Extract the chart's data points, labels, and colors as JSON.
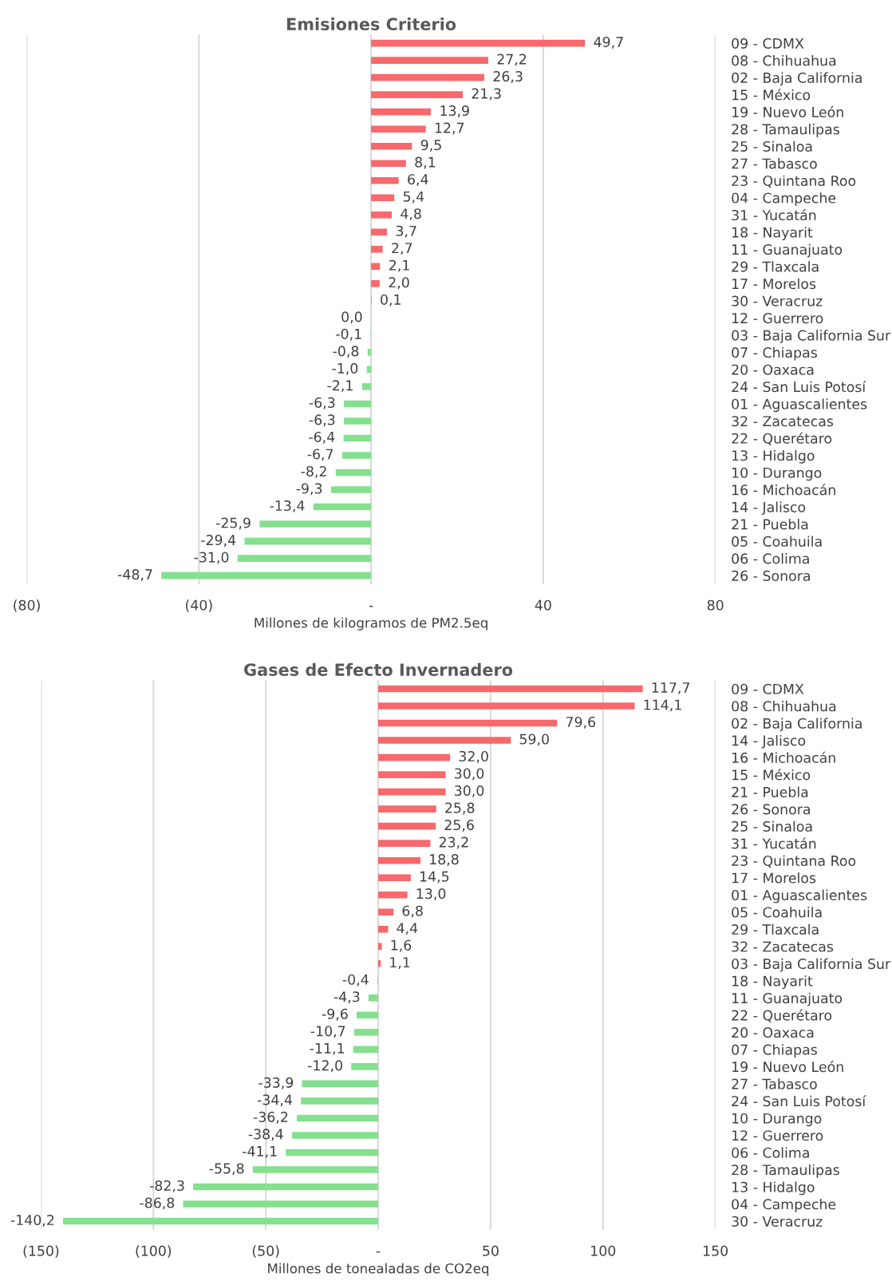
{
  "chart_data": [
    {
      "type": "bar",
      "orientation": "horizontal",
      "title": "Emisiones Criterio",
      "xlabel": "Millones de kilogramos de PM2.5eq",
      "categories": [
        "09 - CDMX",
        "08 - Chihuahua",
        "02 - Baja California",
        "15 - México",
        "19 - Nuevo León",
        "28 - Tamaulipas",
        "25 - Sinaloa",
        "27 - Tabasco",
        "23 - Quintana Roo",
        "04 - Campeche",
        "31 - Yucatán",
        "18 - Nayarit",
        "11 - Guanajuato",
        "29 - Tlaxcala",
        "17 - Morelos",
        "30 - Veracruz",
        "12 - Guerrero",
        "03 - Baja California Sur",
        "07 - Chiapas",
        "20 - Oaxaca",
        "24 - San Luis Potosí",
        "01 - Aguascalientes",
        "32 - Zacatecas",
        "22 - Querétaro",
        "13 - Hidalgo",
        "10 - Durango",
        "16 - Michoacán",
        "14 - Jalisco",
        "21 - Puebla",
        "05 - Coahuila",
        "06 - Colima",
        "26 - Sonora"
      ],
      "values": [
        49.7,
        27.2,
        26.3,
        21.3,
        13.9,
        12.7,
        9.5,
        8.1,
        6.4,
        5.4,
        4.8,
        3.7,
        2.7,
        2.1,
        2.0,
        0.1,
        0.0,
        -0.1,
        -0.8,
        -1.0,
        -2.1,
        -6.3,
        -6.3,
        -6.4,
        -6.7,
        -8.2,
        -9.3,
        -13.4,
        -25.9,
        -29.4,
        -31.0,
        -48.7
      ],
      "value_labels": [
        "49,7",
        "27,2",
        "26,3",
        "21,3",
        "13,9",
        "12,7",
        "9,5",
        "8,1",
        "6,4",
        "5,4",
        "4,8",
        "3,7",
        "2,7",
        "2,1",
        "2,0",
        "0,1",
        "0,0",
        "-0,1",
        "-0,8",
        "-1,0",
        "-2,1",
        "-6,3",
        "-6,3",
        "-6,4",
        "-6,7",
        "-8,2",
        "-9,3",
        "-13,4",
        "-25,9",
        "-29,4",
        "-31,0",
        "-48,7"
      ],
      "colors": [
        "#f8686c",
        "#f8686c",
        "#f8686c",
        "#f8686c",
        "#f8686c",
        "#f8686c",
        "#f8686c",
        "#f8686c",
        "#f8686c",
        "#f8686c",
        "#f8686c",
        "#f8686c",
        "#f8686c",
        "#f8686c",
        "#f8686c",
        "#f8686c",
        "#84e08e",
        "#84e08e",
        "#84e08e",
        "#84e08e",
        "#84e08e",
        "#84e08e",
        "#84e08e",
        "#84e08e",
        "#84e08e",
        "#84e08e",
        "#84e08e",
        "#84e08e",
        "#84e08e",
        "#84e08e",
        "#84e08e",
        "#84e08e"
      ],
      "xlim": [
        -80,
        80
      ],
      "xticks": [
        {
          "value": -80,
          "label": "(80)"
        },
        {
          "value": -40,
          "label": "(40)"
        },
        {
          "value": 0,
          "label": "-"
        },
        40,
        80
      ],
      "grid": "x"
    },
    {
      "type": "bar",
      "orientation": "horizontal",
      "title": "Gases de Efecto Invernadero",
      "xlabel": "Millones de tonealadas de CO2eq",
      "categories": [
        "09 - CDMX",
        "08 - Chihuahua",
        "02 - Baja California",
        "14 - Jalisco",
        "16 - Michoacán",
        "15 - México",
        "21 - Puebla",
        "26 - Sonora",
        "25 - Sinaloa",
        "31 - Yucatán",
        "23 - Quintana Roo",
        "17 - Morelos",
        "01 - Aguascalientes",
        "05 - Coahuila",
        "29 - Tlaxcala",
        "32 - Zacatecas",
        "03 - Baja California Sur",
        "18 - Nayarit",
        "11 - Guanajuato",
        "22 - Querétaro",
        "20 - Oaxaca",
        "07 - Chiapas",
        "19 - Nuevo León",
        "27 - Tabasco",
        "24 - San Luis Potosí",
        "10 - Durango",
        "12 - Guerrero",
        "06 - Colima",
        "28 - Tamaulipas",
        "13 - Hidalgo",
        "04 - Campeche",
        "30 - Veracruz"
      ],
      "values": [
        117.7,
        114.1,
        79.6,
        59.0,
        32.0,
        30.0,
        30.0,
        25.8,
        25.6,
        23.2,
        18.8,
        14.5,
        13.0,
        6.8,
        4.4,
        1.6,
        1.1,
        -0.4,
        -4.3,
        -9.6,
        -10.7,
        -11.1,
        -12.0,
        -33.9,
        -34.4,
        -36.2,
        -38.4,
        -41.1,
        -55.8,
        -82.3,
        -86.8,
        -140.2
      ],
      "value_labels": [
        "117,7",
        "114,1",
        "79,6",
        "59,0",
        "32,0",
        "30,0",
        "30,0",
        "25,8",
        "25,6",
        "23,2",
        "18,8",
        "14,5",
        "13,0",
        "6,8",
        "4,4",
        "1,6",
        "1,1",
        "-0,4",
        "-4,3",
        "-9,6",
        "-10,7",
        "-11,1",
        "-12,0",
        "-33,9",
        "-34,4",
        "-36,2",
        "-38,4",
        "-41,1",
        "-55,8",
        "-82,3",
        "-86,8",
        "-140,2"
      ],
      "colors": [
        "#f8686c",
        "#f8686c",
        "#f8686c",
        "#f8686c",
        "#f8686c",
        "#f8686c",
        "#f8686c",
        "#f8686c",
        "#f8686c",
        "#f8686c",
        "#f8686c",
        "#f8686c",
        "#f8686c",
        "#f8686c",
        "#f8686c",
        "#f8686c",
        "#f8686c",
        "#84e08e",
        "#84e08e",
        "#84e08e",
        "#84e08e",
        "#84e08e",
        "#84e08e",
        "#84e08e",
        "#84e08e",
        "#84e08e",
        "#84e08e",
        "#84e08e",
        "#84e08e",
        "#84e08e",
        "#84e08e",
        "#84e08e"
      ],
      "xlim": [
        -150,
        150
      ],
      "xticks": [
        {
          "value": -150,
          "label": "(150)"
        },
        {
          "value": -100,
          "label": "(100)"
        },
        {
          "value": -50,
          "label": "(50)"
        },
        {
          "value": 0,
          "label": "-"
        },
        50,
        100,
        150
      ],
      "grid": "x"
    }
  ]
}
